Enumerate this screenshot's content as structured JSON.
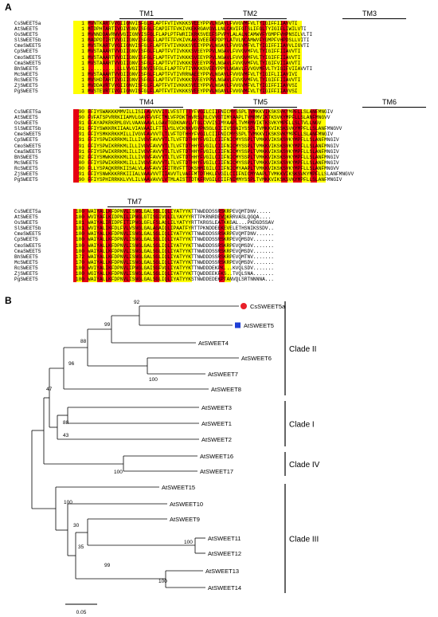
{
  "panel_a": {
    "label": "A",
    "blocks": [
      {
        "tm_labels": [
          "TM1",
          "TM2",
          "TM3"
        ],
        "rows": [
          {
            "name": "CsSWEET5a",
            "pos": "1",
            "seq": "MVNTKARTVVGIIGNVISFGLFLAPTFVTIVKKKSVEEYPPVLNGAVLFVVGVMFVLTYIGIFFIIAVVTI"
          },
          {
            "name": "AtSWEET5",
            "pos": "1",
            "seq": "MTDPHTARTIVGIVGNVISFGLFCAPIFTFVKIVKEKRGAVGVLLNLCAVIFGTSLIFGLTYIGIFLIWILVTI"
          },
          {
            "name": "OsSWEET5",
            "pos": "1",
            "seq": "MVNNDDAVRWVVGIIGNVISFGLFLAPLPTFWRIIKRKSVEEFSPVPYLALALNCAMWVFYGMPFVHPNSILVLTI"
          },
          {
            "name": "SlSWEET5b",
            "pos": "1",
            "seq": "MADPDTIRTVVGIIGNVISFGLFLAPTFTFVKIVKAKSVEEFKPDPYLATVLNCAMWVFYGMPFVHPDSLLVITI"
          },
          {
            "name": "CmeSWEET5",
            "pos": "1",
            "seq": "MVSTKARTVVGIIGNVISFGLFLAPTFVTIVKKKSVEEYPPVLNGAVLFVVGVMFVLTYIGIFFIIAVVLIGVTI"
          },
          {
            "name": "CpSWEET5",
            "pos": "1",
            "seq": "MVSTAAARTVVGIIGNVISFGLFLAPTFVTIVKKKSVEEYPPVLNGAVLFVVGVMFVLTYIGIFFIIAVVTI"
          },
          {
            "name": "CmoSWEET5",
            "pos": "1",
            "seq": "MVSTAAARTVVGIIGNVISFGLFLAPTFVTIVKKKSVEEYPPVLNGAVLFVVGVMFVLTYIGIFFIIAVVTI"
          },
          {
            "name": "CmaSWEET5",
            "pos": "1",
            "seq": "MVSTAAARTVVGIIGNVISFGLFLAPTFVTIVKKKSVEEYPPVLNGAVLFVVGVMFVLTYIGIFVIIAVVTI"
          },
          {
            "name": "BhSWEET5",
            "pos": "1",
            "seq": "..........LLLVVGIIGNVISFGLFLAPTFVTIVKKKSVEEYPPVLNGAVLFVVGVMFVLTYIGIFVIIAVVTI"
          },
          {
            "name": "McSWEET5",
            "pos": "1",
            "seq": "MVSTAAARTVVGIIGNVISFGLFLAPTFVTIVRRNAEEYPPVLNGAVLFVVGVMFVLTYIGIFLIIAVIVI"
          },
          {
            "name": "RcSWEET5",
            "pos": "1",
            "seq": "MVSHDTARTIVGIIGNVISFGLFLAPTFVTIVKKKSVEEYPPVLNGAVLFVVGVMFVLTYIGIFFIIAVVTI"
          },
          {
            "name": "ZjSWEET5",
            "pos": "1",
            "seq": "MVDDAVRTVVGIIGNVISFGLFLAPTFVTIVKKKSVEEYPPVLNGAVLFVVGVMFVLTYIGIFFIIAVVSI"
          },
          {
            "name": "PgSWEET5",
            "pos": "1",
            "seq": "MVSTEVRTIVGIIGNVISFGLFLAPTFVTIVKKKSVEEYPPVLNGAVLFVVGVMFVLTYIGIFFIIAVVSI"
          }
        ]
      },
      {
        "tm_labels": [
          "TM4",
          "TM5",
          "TM6"
        ],
        "rows": [
          {
            "name": "CsSWEET5a",
            "pos": "90",
            "seq": "FFIYSWAKKKMMVILLISIFAVVVVITLVFSTTTTYFVGILCIIFNICMYSSPLTVMKKVIKSKSVKYMPFLLSLANFMNGIV"
          },
          {
            "name": "AtSWEET5",
            "pos": "90",
            "seq": "FVFATSPVRRKIIAMVLGAVFVVFCTMLVFPDKTHVRSLRLCVVGTIMYAAPLTVMRMVIKTKSVKYMPFLLSLANFMNGVV"
          },
          {
            "name": "OsSWEET5",
            "pos": "91",
            "seq": "FFAYAPKRKRMLGVLVAAVAAVLLGAVTGDKNAVLVTGLCVVISIMYAAPLTVMRMVIKTKSVKYMPFLLSLTVLLNGV"
          },
          {
            "name": "SlSWEET5b",
            "pos": "91",
            "seq": "FFIYSWKKRKIIAALVIAVAAILFTTLVSLVCKNKVGVPNSGLGICIVSSNIYSSPLTVMKKVIKSKSVKYMPFLLSLANFMNGVV"
          },
          {
            "name": "CmeSWEET5",
            "pos": "91",
            "seq": "FFIYSMKKRKKMILLIVGVFAVVVTLTLVFTDTHHYFVGILCIIFNICMYSSPLTVMKKVIKSKSVKYMPFLLSLANFMNGIV"
          },
          {
            "name": "CpSWEET5",
            "pos": "91",
            "seq": "FFIYSPWIKRRKMLILLIVGVFAVVVTLTLVFTDTHHYFVGILCIIFNICMYSSPLTVMKKVIKSKSVKYMPFLLSLANFMNGIV"
          },
          {
            "name": "CmoSWEET5",
            "pos": "91",
            "seq": "FFIYSPWIKRRKMLILLIVGVFAVVVTLTLVFTDTHHYFVGILCIIFNICMYSSPLTVMKKVIKSKSVKYMPFLLSLANFMNGIV"
          },
          {
            "name": "CmaSWEET5",
            "pos": "91",
            "seq": "FFIYSPWIKRRKMLILLIVGVFAVVVTLTLVFTDTHHYFVGILCIIFNICMYSSPLTVMKKVIKSKSVKYMPFLLSLANFMNGIV"
          },
          {
            "name": "BhSWEET5",
            "pos": "82",
            "seq": "FFIYSMWKKRKKMLILLIVGVFAVVVTLTLVFTDTHHYFVGILCIIFNICMYSSPLTVMKKVIKSKSVKYMPFLLSLANFMNGIV"
          },
          {
            "name": "McSWEET5",
            "pos": "80",
            "seq": "FFIYSPWIKRRKMLILLIVGVFAVVVTLTLVFTDTHHYFVGILCIIFNICMYSSPLTVMKKVIKSKSVKYMPFLLSLANFMNGIV"
          },
          {
            "name": "RcSWEET5",
            "pos": "90",
            "seq": "FLLYSPAQKRRKIISALVLAVFAVVIFITRVFTTDKSHMIGILCIIFNICMYAAPLTVMKKVIKSKSVKYMPFLLSLANFMNGVV"
          },
          {
            "name": "ZjSWEET5",
            "pos": "91",
            "seq": "FFIYSNWKKKRRKIIIALVAAVVVTIIAVVTLVAFFMTDTHKLFVGILCIIFNICMYAAPLTVMKKVIKSKSVKYMPFLLSLANFMNGVV"
          },
          {
            "name": "PgSWEET5",
            "pos": "90",
            "seq": "FFIYSPHIRRKKLVVLILVAAVAVVLVTMLAISTTDTKFRVGILCIIFNIMMYSSPLTVMKKVIKSKSVKYMPFLLSLANFMNGIV"
          }
        ]
      },
      {
        "tm_labels": [
          "TM7"
        ],
        "rows": [
          {
            "name": "CsSWEET5a",
            "pos": "180",
            "seq": "WAIYALLKFDPNVLISNGLGALSGLIQLIYATYYKTTNWDDDSSRSKRPEVQMTDNV....."
          },
          {
            "name": "AtSWEET5",
            "pos": "180",
            "seq": "WVIYAFLKIDPNILIPNGLGTISGIVQLILYAYYYRTTPKRNRDEVQKRRVASLQGQA...."
          },
          {
            "name": "OsSWEET5",
            "pos": "181",
            "seq": "WAIYALIRIDPFITIPNGLGFLFSLAQLILYATYYRTTKRGSLEATKKGAL...PKDGDSSAV"
          },
          {
            "name": "SlSWEET5b",
            "pos": "181",
            "seq": "WVIYALIKFDLFVLVSNGLGALAGAIQLIPAATFYRTTPKNDDEEKEVELETHSNIKSSDV.."
          },
          {
            "name": "CmeSWEET5",
            "pos": "180",
            "seq": "WAIYALLKFDPNVLISNGLGALSGLIQLIYATYYKTTNWDDDSSRSKRPEVQMTDNV......"
          },
          {
            "name": "CpSWEET5",
            "pos": "180",
            "seq": "WAIYALLKFDPNVLISNGLGALSGLIQLIYATYYKTTNWDDDSSRSKRPEVQMSDV......."
          },
          {
            "name": "CmoSWEET5",
            "pos": "180",
            "seq": "WAIYALLKFDPNVLISNGLGALSGLIQLIYATYYKTTNWDDDSSRSKRPEVQMSDV......."
          },
          {
            "name": "CmaSWEET5",
            "pos": "180",
            "seq": "WAIYALLKFDPNVLISNGLGALSGLIQLIYATYYKTTNWDDDSSRSKRPEVQMSDV......."
          },
          {
            "name": "BhSWEET5",
            "pos": "172",
            "seq": "WAIYALLKFDPNVLISNGLGALSGLIQLIYATYYKTTNWDDDSSRSKRPEVQMTNV......."
          },
          {
            "name": "McSWEET5",
            "pos": "170",
            "seq": "WAIYALLKFDPNVLISNGLGALSGLIQLIYATYYKTTNWDDDSSRSKRPEVQMSDV......."
          },
          {
            "name": "RcSWEET5",
            "pos": "180",
            "seq": "WVIYALIKFDPNVLIPNGLGAISGFVQLIYATYYKTTNWDDDEKPK...KVQLSDV......."
          },
          {
            "name": "ZjSWEET5",
            "pos": "180",
            "seq": "WGIYALLKFDPNVLISNGLGALSGLIQLIYATYYKTTQWDDEEKFKS..TVQLSNA......."
          },
          {
            "name": "PgSWEET5",
            "pos": "180",
            "seq": "WAIYALLKFDPNVLISNGLGALSGLIQLIYATYYKSTNWDDEDEKPTANVQLSRTNNNNA..."
          }
        ]
      }
    ]
  },
  "panel_b": {
    "label": "B",
    "scale_label": "0.05",
    "bootstrap_values": [
      "92",
      "99",
      "88",
      "96",
      "100",
      "47",
      "88",
      "43",
      "100",
      "100",
      "30",
      "35",
      "100",
      "99",
      "100"
    ],
    "taxa": [
      {
        "label": "CsSWEET5a",
        "marker": "circle",
        "color": "#e8202a"
      },
      {
        "label": "AtSWEET5",
        "marker": "square",
        "color": "#1f3fd6"
      },
      {
        "label": "AtSWEET4"
      },
      {
        "label": "AtSWEET6"
      },
      {
        "label": "AtSWEET7"
      },
      {
        "label": "AtSWEET8"
      },
      {
        "label": "AtSWEET3"
      },
      {
        "label": "AtSWEET1"
      },
      {
        "label": "AtSWEET2"
      },
      {
        "label": "AtSWEET16"
      },
      {
        "label": "AtSWEET17"
      },
      {
        "label": "AtSWEET15"
      },
      {
        "label": "AtSWEET10"
      },
      {
        "label": "AtSWEET9"
      },
      {
        "label": "AtSWEET11"
      },
      {
        "label": "AtSWEET12"
      },
      {
        "label": "AtSWEET13"
      },
      {
        "label": "AtSWEET14"
      }
    ],
    "clades": [
      "Clade II",
      "Clade I",
      "Clade IV",
      "Clade III"
    ]
  },
  "colors": {
    "red": "#e60012",
    "yellow": "#ffff00",
    "marker_red": "#e8202a",
    "marker_blue": "#1f3fd6"
  }
}
